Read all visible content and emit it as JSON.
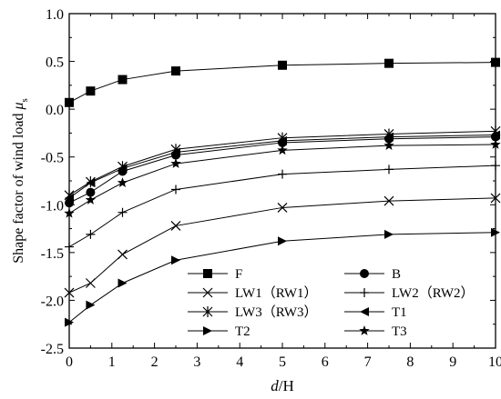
{
  "chart_data": {
    "type": "line",
    "xlabel_italic": "d",
    "xlabel_rest": "/H",
    "ylabel_main": "Shape factor of wind load ",
    "ylabel_symbol": "μ",
    "ylabel_sub": "s",
    "xlim": [
      0,
      10
    ],
    "ylim": [
      -2.5,
      1.0
    ],
    "xticks": [
      0,
      1,
      2,
      3,
      4,
      5,
      6,
      7,
      8,
      9,
      10
    ],
    "yticks": [
      1.0,
      0.5,
      0.0,
      -0.5,
      -1.0,
      -1.5,
      -2.0,
      -2.5
    ],
    "xtick_labels": [
      "0",
      "1",
      "2",
      "3",
      "4",
      "5",
      "6",
      "7",
      "8",
      "9",
      "10"
    ],
    "ytick_labels": [
      "1.0",
      "0.5",
      "0.0",
      "-0.5",
      "-1.0",
      "-1.5",
      "-2.0",
      "-2.5"
    ],
    "grid": false,
    "legend_placement": "bottom",
    "color": "#000000",
    "x": [
      0,
      0.5,
      1.25,
      2.5,
      5,
      7.5,
      10
    ],
    "series": [
      {
        "name": "F",
        "marker": "square",
        "values": [
          0.07,
          0.19,
          0.31,
          0.4,
          0.46,
          0.48,
          0.49
        ]
      },
      {
        "name": "B",
        "marker": "circle",
        "values": [
          -0.98,
          -0.87,
          -0.65,
          -0.48,
          -0.35,
          -0.31,
          -0.29
        ]
      },
      {
        "name": "LW1（RW1）",
        "marker": "x",
        "values": [
          -1.92,
          -1.82,
          -1.52,
          -1.22,
          -1.03,
          -0.96,
          -0.93
        ]
      },
      {
        "name": "LW2（RW2）",
        "marker": "plus",
        "values": [
          -1.44,
          -1.31,
          -1.08,
          -0.84,
          -0.68,
          -0.63,
          -0.59
        ]
      },
      {
        "name": "LW3（RW3）",
        "marker": "asterisk",
        "values": [
          -0.9,
          -0.76,
          -0.6,
          -0.42,
          -0.3,
          -0.26,
          -0.23
        ]
      },
      {
        "name": "T1",
        "marker": "triangle-left",
        "values": [
          -0.93,
          -0.77,
          -0.62,
          -0.45,
          -0.33,
          -0.29,
          -0.27
        ]
      },
      {
        "name": "T2",
        "marker": "triangle-right",
        "values": [
          -2.23,
          -2.05,
          -1.82,
          -1.58,
          -1.38,
          -1.31,
          -1.29
        ]
      },
      {
        "name": "T3",
        "marker": "star",
        "values": [
          -1.09,
          -0.95,
          -0.77,
          -0.57,
          -0.43,
          -0.38,
          -0.37
        ]
      }
    ]
  }
}
